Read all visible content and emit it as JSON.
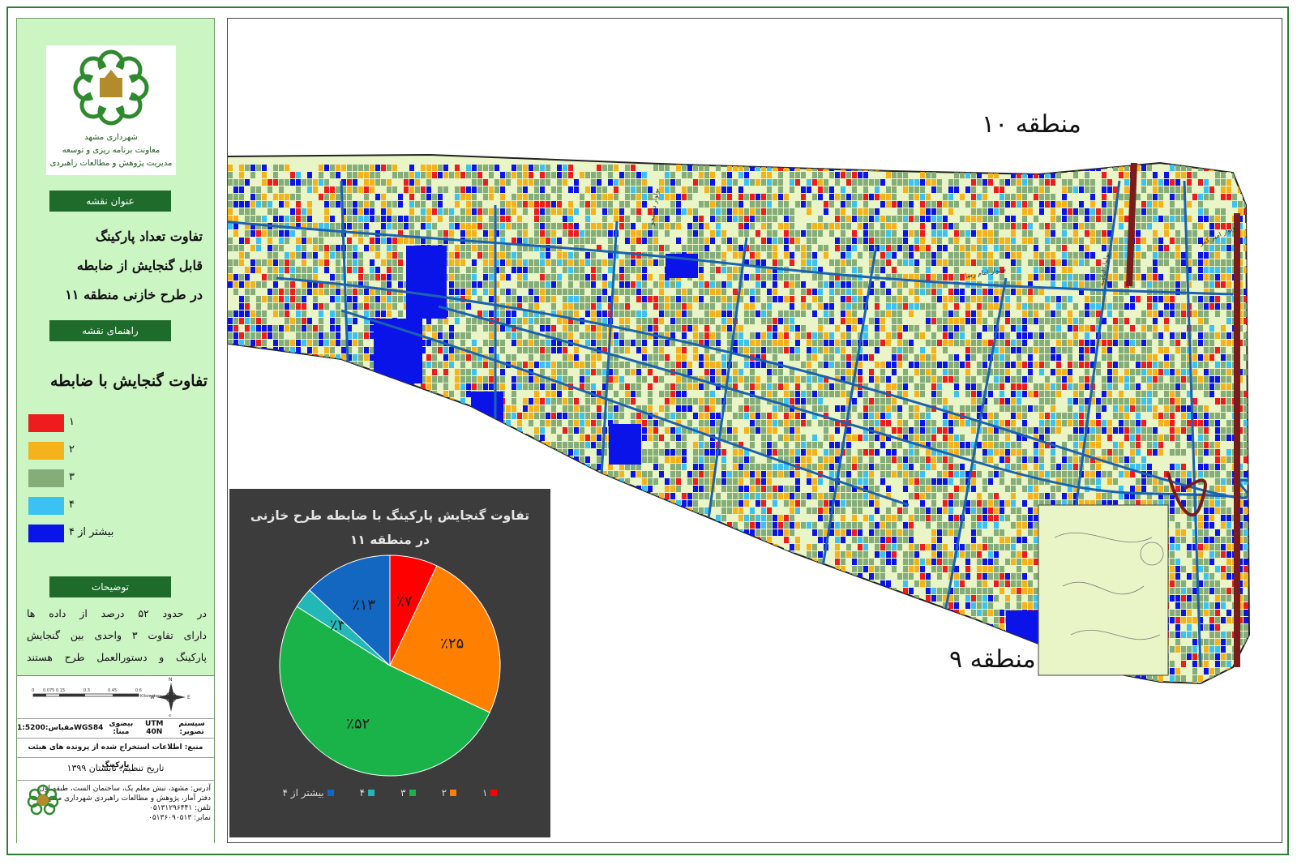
{
  "legend_panel": {
    "logo": {
      "caption_line1": "شهرداری مشهد",
      "caption_line2": "معاونت برنامه ریزی و توسعه",
      "caption_line3": "مدیریت پژوهش و مطالعات راهبردی"
    },
    "map_title_header": "عنوان نقشه",
    "map_title_lines": [
      "تفاوت تعداد پارکینگ",
      "قابل گنجایش از ضابطه",
      "در طرح خازنی منطقه ۱۱"
    ],
    "legend_header": "راهنمای نقشه",
    "legend_heading": "تفاوت گنجایش با ضابطه",
    "legend_items": [
      {
        "label": "۱",
        "color": "#ee1c1c"
      },
      {
        "label": "۲",
        "color": "#f6b21b"
      },
      {
        "label": "۳",
        "color": "#84ad7a"
      },
      {
        "label": "۴",
        "color": "#3cc2f2"
      },
      {
        "label": "بیشتر از ۴",
        "color": "#0b14e8"
      }
    ],
    "notes_header": "توضیحات",
    "notes_lines": [
      "در حدود ۵۲ درصد از داده ها",
      "دارای تفاوت ۳ واحدی بین گنجایش",
      "پارکینگ و دستورالعمل طرح هستند"
    ],
    "scale_ticks": [
      "0",
      "0.075",
      "0.15",
      "0.3",
      "0.45",
      "0.6"
    ],
    "scale_unit": "Kilometers",
    "projection_label": "سیستم تصویر:",
    "projection_value": "UTM 40N",
    "datum_label": "بیضوی مبنا:",
    "datum_value": "WGS84",
    "scale_label": "مقیاس:",
    "scale_value": "1:5200",
    "source_text": "منبع: اطلاعات استخراج شده از پرونده های هیئت پارکینگ",
    "date_text": "تاریخ تنظیم: تابستان ۱۳۹۹",
    "address_lines": [
      "آدرس: مشهد، نبش معلم یک، ساختمان الست، طبقه اول",
      "دفتر آمار، پژوهش و مطالعات راهبردی شهرداری مشهد",
      "تلفن: ۰۵۱۳۱۲۹۶۴۴۱",
      "نمابر: ۰۵۱۳۶۰۹۰۵۱۳"
    ]
  },
  "map": {
    "region_north": "منطقه ۱۰",
    "region_south": "منطقه ۹",
    "street_labels": [
      "بولوار دانشجو",
      "بولوار امامیه",
      "بولوار امام رضا",
      "بولوار امیر کبیر"
    ]
  },
  "chart_data": {
    "type": "pie",
    "title": "تفاوت گنجایش پارکینگ با ضابطه طرح خازنی در منطقه ۱۱",
    "categories": [
      "۱",
      "۲",
      "۳",
      "۴",
      "بیشتر از ۴"
    ],
    "values": [
      7,
      25,
      52,
      3,
      13
    ],
    "data_labels": [
      "٪۷",
      "٪۲۵",
      "٪۵۲",
      "٪۳",
      "٪۱۳"
    ],
    "colors": [
      "#ff0000",
      "#ff8000",
      "#19b34a",
      "#24b7b7",
      "#1467c1"
    ],
    "legend_position": "bottom"
  }
}
